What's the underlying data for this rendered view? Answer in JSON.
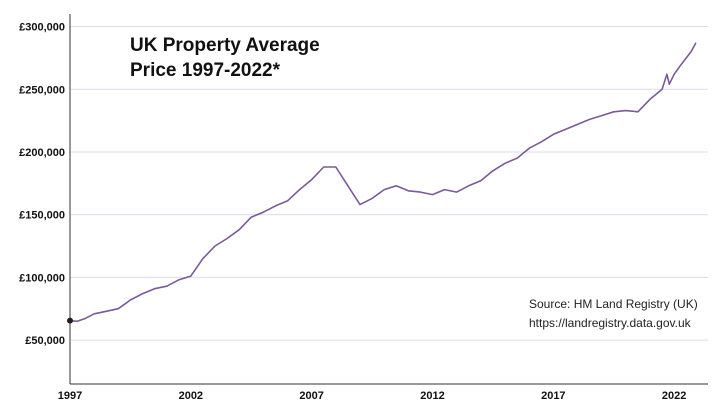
{
  "chart_data": {
    "type": "line",
    "title_lines": [
      "UK Property Average",
      "Price 1997-2022*"
    ],
    "xlabel": "",
    "ylabel": "",
    "xlim": [
      1997,
      2023.4
    ],
    "ylim": [
      15000,
      310000
    ],
    "x_ticks": [
      1997,
      2002,
      2007,
      2012,
      2017,
      2022
    ],
    "x_tick_labels": [
      "1997",
      "2002",
      "2007",
      "2012",
      "2017",
      "2022"
    ],
    "y_ticks": [
      50000,
      100000,
      150000,
      200000,
      250000,
      300000
    ],
    "y_tick_labels": [
      "£50,000",
      "£100,000",
      "£150,000",
      "£200,000",
      "£250,000",
      "£300,000"
    ],
    "grid": "horizontal",
    "legend": "none",
    "line_color": "#7a5a9a",
    "grid_color": "#dcdcec",
    "start_marker_color": "#2b1a1a",
    "source_lines": [
      "Source: HM Land Registry (UK)",
      "https://landregistry.data.gov.uk"
    ],
    "series": [
      {
        "values": [
          [
            1997.0,
            65500
          ],
          [
            1997.3,
            65000
          ],
          [
            1997.6,
            67000
          ],
          [
            1998.0,
            71000
          ],
          [
            1998.5,
            73000
          ],
          [
            1999.0,
            75000
          ],
          [
            1999.5,
            82000
          ],
          [
            2000.0,
            87000
          ],
          [
            2000.5,
            91000
          ],
          [
            2001.0,
            93000
          ],
          [
            2001.5,
            98000
          ],
          [
            2002.0,
            101000
          ],
          [
            2002.5,
            115000
          ],
          [
            2003.0,
            125000
          ],
          [
            2003.5,
            131000
          ],
          [
            2004.0,
            138000
          ],
          [
            2004.5,
            148000
          ],
          [
            2005.0,
            152000
          ],
          [
            2005.5,
            157000
          ],
          [
            2006.0,
            161000
          ],
          [
            2006.5,
            170000
          ],
          [
            2007.0,
            178000
          ],
          [
            2007.5,
            188000
          ],
          [
            2008.0,
            188000
          ],
          [
            2008.5,
            173000
          ],
          [
            2009.0,
            158000
          ],
          [
            2009.5,
            163000
          ],
          [
            2010.0,
            170000
          ],
          [
            2010.5,
            173000
          ],
          [
            2011.0,
            169000
          ],
          [
            2011.5,
            168000
          ],
          [
            2012.0,
            166000
          ],
          [
            2012.5,
            170000
          ],
          [
            2013.0,
            168000
          ],
          [
            2013.5,
            173000
          ],
          [
            2014.0,
            177000
          ],
          [
            2014.5,
            185000
          ],
          [
            2015.0,
            191000
          ],
          [
            2015.5,
            195000
          ],
          [
            2016.0,
            203000
          ],
          [
            2016.5,
            208000
          ],
          [
            2017.0,
            214000
          ],
          [
            2017.5,
            218000
          ],
          [
            2018.0,
            222000
          ],
          [
            2018.5,
            226000
          ],
          [
            2019.0,
            229000
          ],
          [
            2019.5,
            232000
          ],
          [
            2020.0,
            233000
          ],
          [
            2020.5,
            232000
          ],
          [
            2021.0,
            242000
          ],
          [
            2021.5,
            250000
          ],
          [
            2021.7,
            262000
          ],
          [
            2021.8,
            254000
          ],
          [
            2022.0,
            262000
          ],
          [
            2022.3,
            270000
          ],
          [
            2022.7,
            280000
          ],
          [
            2022.9,
            287000
          ]
        ]
      }
    ]
  }
}
